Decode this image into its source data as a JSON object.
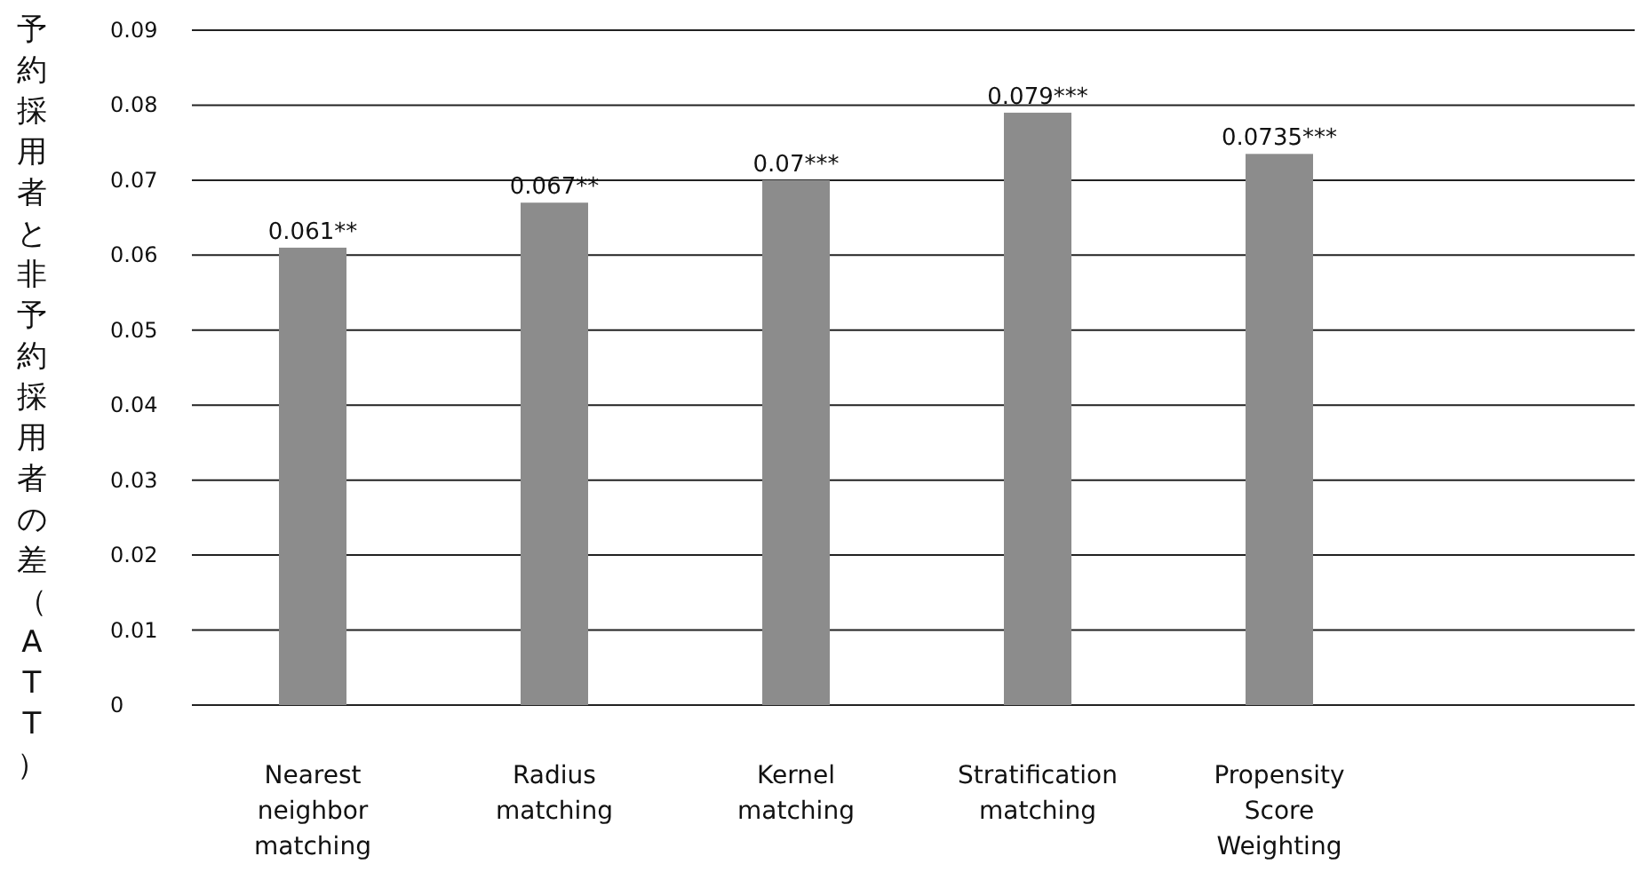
{
  "chart_data": {
    "type": "bar",
    "ylabel": "予約採用者と非予約採用者の差（ATT）",
    "categories": [
      "Nearest neighbor matching",
      "Radius matching",
      "Kernel matching",
      "Stratification matching",
      "Propensity Score Weighting"
    ],
    "values": [
      0.061,
      0.067,
      0.07,
      0.079,
      0.0735
    ],
    "value_labels": [
      "0.061**",
      "0.067**",
      "0.07***",
      "0.079***",
      "0.0735***"
    ],
    "color": "#8c8c8c",
    "ylim": [
      0,
      0.09
    ],
    "yticks": [
      0,
      0.01,
      0.02,
      0.03,
      0.04,
      0.05,
      0.06,
      0.07,
      0.08,
      0.09
    ],
    "grid": "y"
  }
}
